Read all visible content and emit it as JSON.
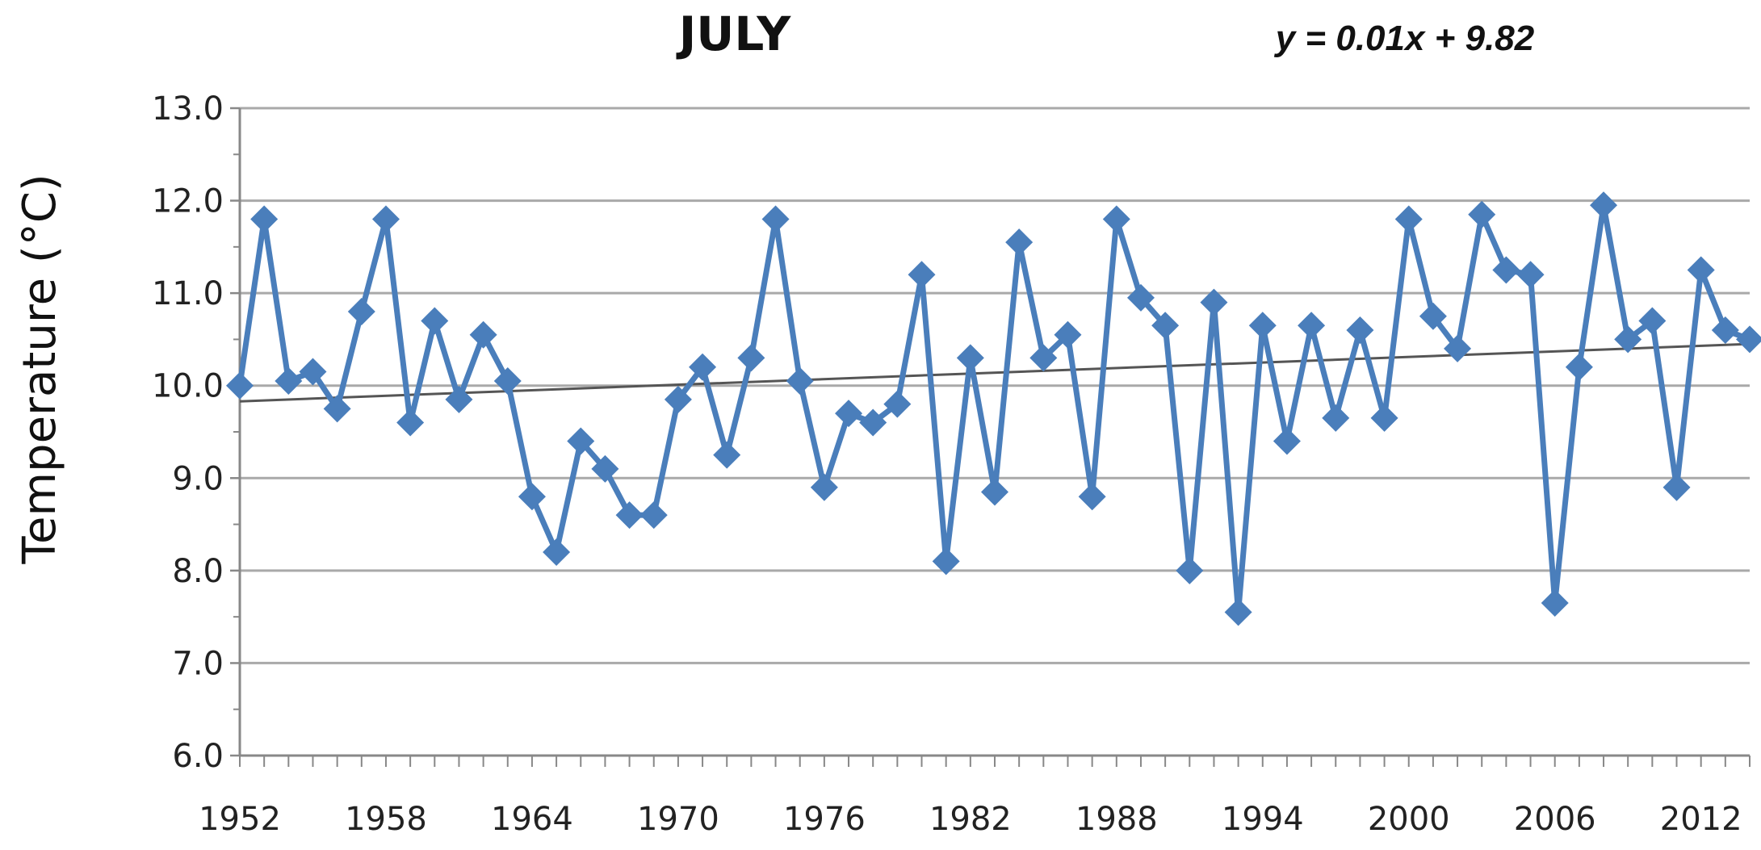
{
  "chart_data": {
    "type": "line",
    "title": "JULY",
    "annotation": "y = 0.01x + 9.82",
    "xlabel": "",
    "ylabel": "Temperature (°C)",
    "ylim": [
      6.0,
      13.0
    ],
    "yticks": [
      "6.0",
      "7.0",
      "8.0",
      "9.0",
      "10.0",
      "11.0",
      "12.0",
      "13.0"
    ],
    "xlim": [
      1952,
      2014
    ],
    "xticks": [
      "1952",
      "1958",
      "1964",
      "1970",
      "1976",
      "1982",
      "1988",
      "1994",
      "2000",
      "2006",
      "2012"
    ],
    "grid": true,
    "series": [
      {
        "color": "#4a7ebb",
        "marker": "diamond",
        "x": [
          1952,
          1953,
          1954,
          1955,
          1956,
          1957,
          1958,
          1959,
          1960,
          1961,
          1962,
          1963,
          1964,
          1965,
          1966,
          1967,
          1968,
          1969,
          1970,
          1971,
          1972,
          1973,
          1974,
          1975,
          1976,
          1977,
          1978,
          1979,
          1980,
          1981,
          1982,
          1983,
          1984,
          1985,
          1986,
          1987,
          1988,
          1989,
          1990,
          1991,
          1992,
          1993,
          1994,
          1995,
          1996,
          1997,
          1998,
          1999,
          2000,
          2001,
          2002,
          2003,
          2004,
          2005,
          2006,
          2007,
          2008,
          2009,
          2010,
          2011,
          2012,
          2013,
          2014
        ],
        "values": [
          10.0,
          11.8,
          10.05,
          10.15,
          9.75,
          10.8,
          11.8,
          9.6,
          10.7,
          9.85,
          10.55,
          10.05,
          8.8,
          8.2,
          9.4,
          9.1,
          8.6,
          8.6,
          9.85,
          10.2,
          9.25,
          10.3,
          11.8,
          10.05,
          8.9,
          9.7,
          9.6,
          9.8,
          11.2,
          8.1,
          10.3,
          8.85,
          11.55,
          10.3,
          10.55,
          8.8,
          11.8,
          10.95,
          10.65,
          8.0,
          10.9,
          7.55,
          10.65,
          9.4,
          10.65,
          9.65,
          10.6,
          9.65,
          11.8,
          10.75,
          10.4,
          11.85,
          11.25,
          11.2,
          7.65,
          10.2,
          11.95,
          10.5,
          10.7,
          8.9,
          11.25,
          10.6,
          10.5
        ]
      }
    ],
    "trendline": {
      "color": "#555555",
      "slope": 0.01,
      "intercept": 9.82
    }
  }
}
